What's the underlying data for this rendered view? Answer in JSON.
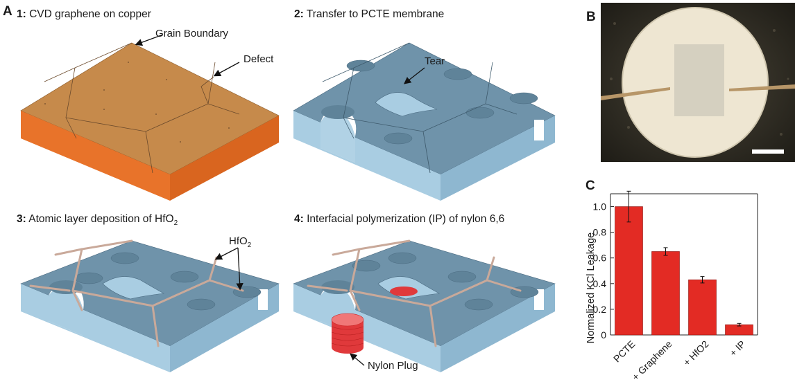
{
  "panelA": {
    "letter": "A",
    "steps": [
      {
        "num": "1:",
        "text": "CVD graphene on copper"
      },
      {
        "num": "2:",
        "text": "Transfer to PCTE membrane"
      },
      {
        "num": "3:",
        "text": "Atomic layer deposition of HfO",
        "sub": "2"
      },
      {
        "num": "4:",
        "text": "Interfacial polymerization (IP) of nylon 6,6"
      }
    ],
    "callouts": {
      "grain_boundary": "Grain Boundary",
      "defect": "Defect",
      "tear": "Tear",
      "hfo2": "HfO",
      "hfo2_sub": "2",
      "nylon_plug": "Nylon Plug"
    }
  },
  "panelB": {
    "letter": "B"
  },
  "panelC": {
    "letter": "C"
  },
  "colors": {
    "copper_top": "#c68a4b",
    "copper_side": "#e8732a",
    "membrane_top": "#6f93aa",
    "membrane_side": "#a9cde2",
    "hfo2_line": "#c9a99a",
    "nylon": "#e0393b",
    "bar": "#e32b24"
  },
  "chart_data": {
    "type": "bar",
    "categories": [
      "PCTE",
      "+ Graphene",
      "+ HfO2",
      "+ IP"
    ],
    "values": [
      1.0,
      0.65,
      0.43,
      0.08
    ],
    "errors": [
      0.12,
      0.03,
      0.025,
      0.01
    ],
    "ylabel": "Normalized KCl Leakage",
    "ylim": [
      0,
      1.1
    ],
    "yticks": [
      0,
      0.2,
      0.4,
      0.6,
      0.8,
      1.0
    ],
    "ytick_labels": [
      "0",
      "0.2",
      "0.4",
      "0.6",
      "0.8",
      "1.0"
    ]
  }
}
